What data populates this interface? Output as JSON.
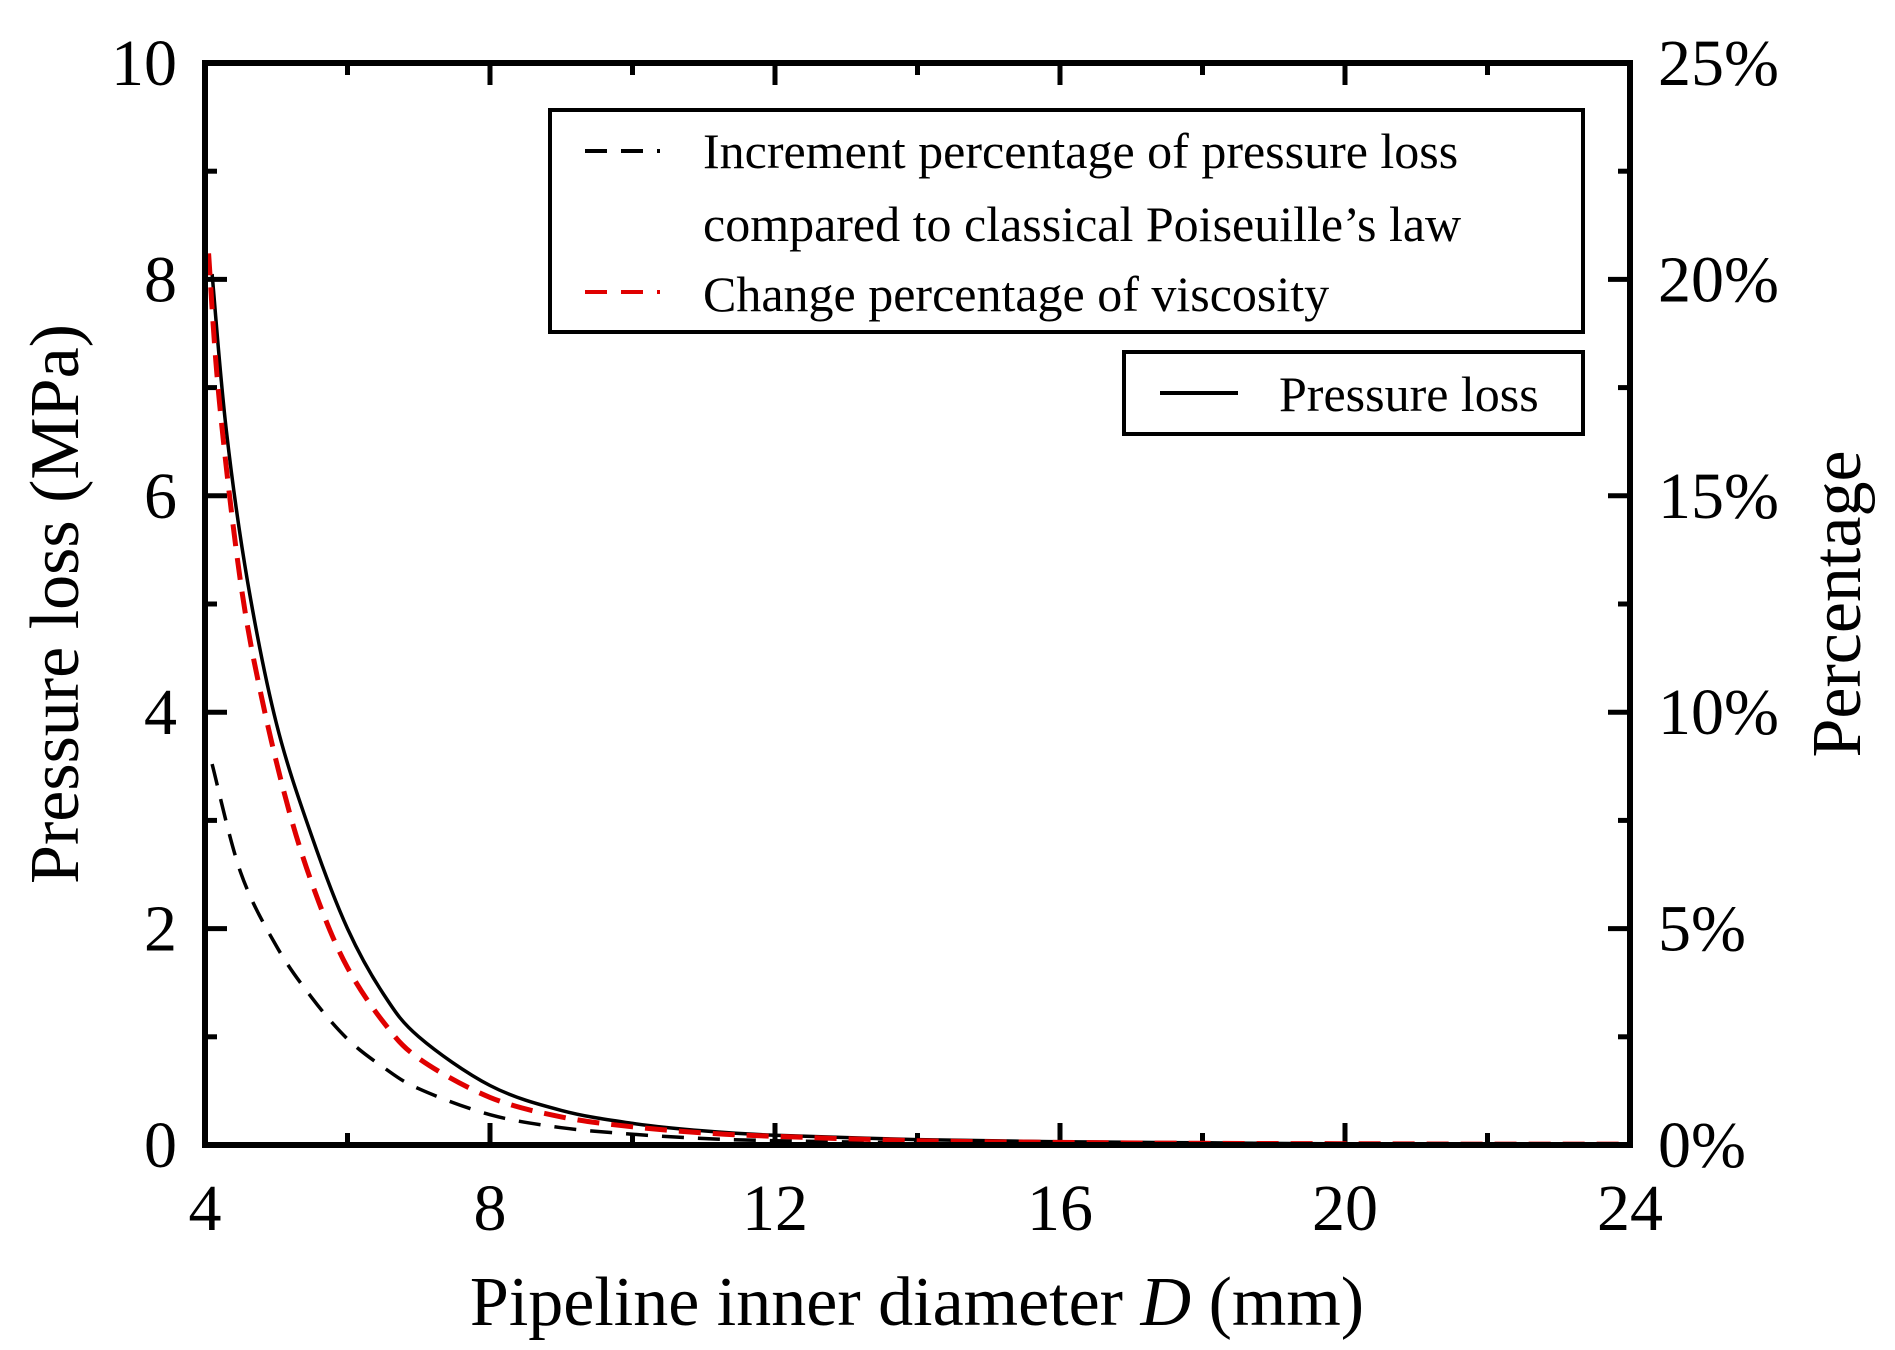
{
  "chart_data": {
    "type": "line",
    "x_axis": {
      "label_prefix": "Pipeline inner diameter ",
      "label_var": "D",
      "label_suffix": " (mm)",
      "range": [
        4,
        24
      ],
      "ticks": [
        4,
        8,
        12,
        16,
        20,
        24
      ],
      "tick_labels": [
        "4",
        "8",
        "12",
        "16",
        "20",
        "24"
      ],
      "minor_step": 2
    },
    "y_axis_left": {
      "label": "Pressure loss (MPa)",
      "range": [
        0,
        10
      ],
      "ticks": [
        0,
        2,
        4,
        6,
        8,
        10
      ],
      "tick_labels": [
        "0",
        "2",
        "4",
        "6",
        "8",
        "10"
      ],
      "minor_step": 1
    },
    "y_axis_right": {
      "label": "Percentage",
      "range": [
        0,
        25
      ],
      "ticks": [
        0,
        5,
        10,
        15,
        20,
        25
      ],
      "tick_labels": [
        "0%",
        "5%",
        "10%",
        "15%",
        "20%",
        "25%"
      ],
      "minor_step": 2.5
    },
    "series": [
      {
        "name": "Pressure loss",
        "axis": "left",
        "color": "#000000",
        "dash": "solid",
        "x": [
          4.1,
          4.3,
          4.6,
          5.0,
          5.5,
          6.0,
          6.5,
          7.0,
          8.0,
          9.0,
          10.0,
          11.0,
          12.0,
          14.0,
          16.0,
          18.0,
          20.0,
          22.0,
          24.0
        ],
        "y": [
          8.05,
          6.6,
          5.2,
          3.9,
          2.85,
          2.0,
          1.4,
          1.0,
          0.55,
          0.32,
          0.2,
          0.13,
          0.09,
          0.05,
          0.03,
          0.02,
          0.01,
          0.01,
          0.01
        ]
      },
      {
        "name": "Increment percentage of pressure loss compared to classical Poiseuille’s law",
        "axis": "right",
        "color": "#000000",
        "dash": "dashed",
        "x": [
          4.1,
          4.5,
          5.0,
          5.5,
          6.0,
          6.5,
          7.0,
          8.0,
          9.0,
          10.0,
          11.0,
          12.0,
          14.0,
          16.0,
          18.0,
          20.0,
          22.0,
          24.0
        ],
        "y": [
          8.8,
          6.3,
          4.6,
          3.4,
          2.45,
          1.8,
          1.3,
          0.7,
          0.4,
          0.25,
          0.15,
          0.1,
          0.05,
          0.03,
          0.02,
          0.01,
          0.01,
          0.01
        ]
      },
      {
        "name": "Change percentage of viscosity",
        "axis": "right",
        "color": "#e00000",
        "dash": "dashed",
        "x": [
          4.05,
          4.2,
          4.5,
          4.8,
          5.2,
          5.6,
          6.0,
          6.5,
          7.0,
          8.0,
          9.0,
          10.0,
          11.0,
          12.0,
          14.0,
          16.0,
          18.0,
          20.0,
          22.0,
          24.0
        ],
        "y": [
          20.6,
          17.2,
          13.0,
          10.3,
          7.6,
          5.6,
          4.1,
          2.85,
          2.0,
          1.1,
          0.65,
          0.42,
          0.28,
          0.2,
          0.1,
          0.06,
          0.04,
          0.03,
          0.02,
          0.02
        ]
      }
    ],
    "legend": [
      {
        "label_lines": [
          "Increment percentage of pressure loss",
          "compared to classical Poiseuille’s law"
        ],
        "color": "#000000",
        "dash": "dashed"
      },
      {
        "label_lines": [
          "Change percentage of viscosity"
        ],
        "color": "#e00000",
        "dash": "dashed"
      },
      {
        "label_lines": [
          "Pressure loss"
        ],
        "color": "#000000",
        "dash": "solid"
      }
    ]
  }
}
